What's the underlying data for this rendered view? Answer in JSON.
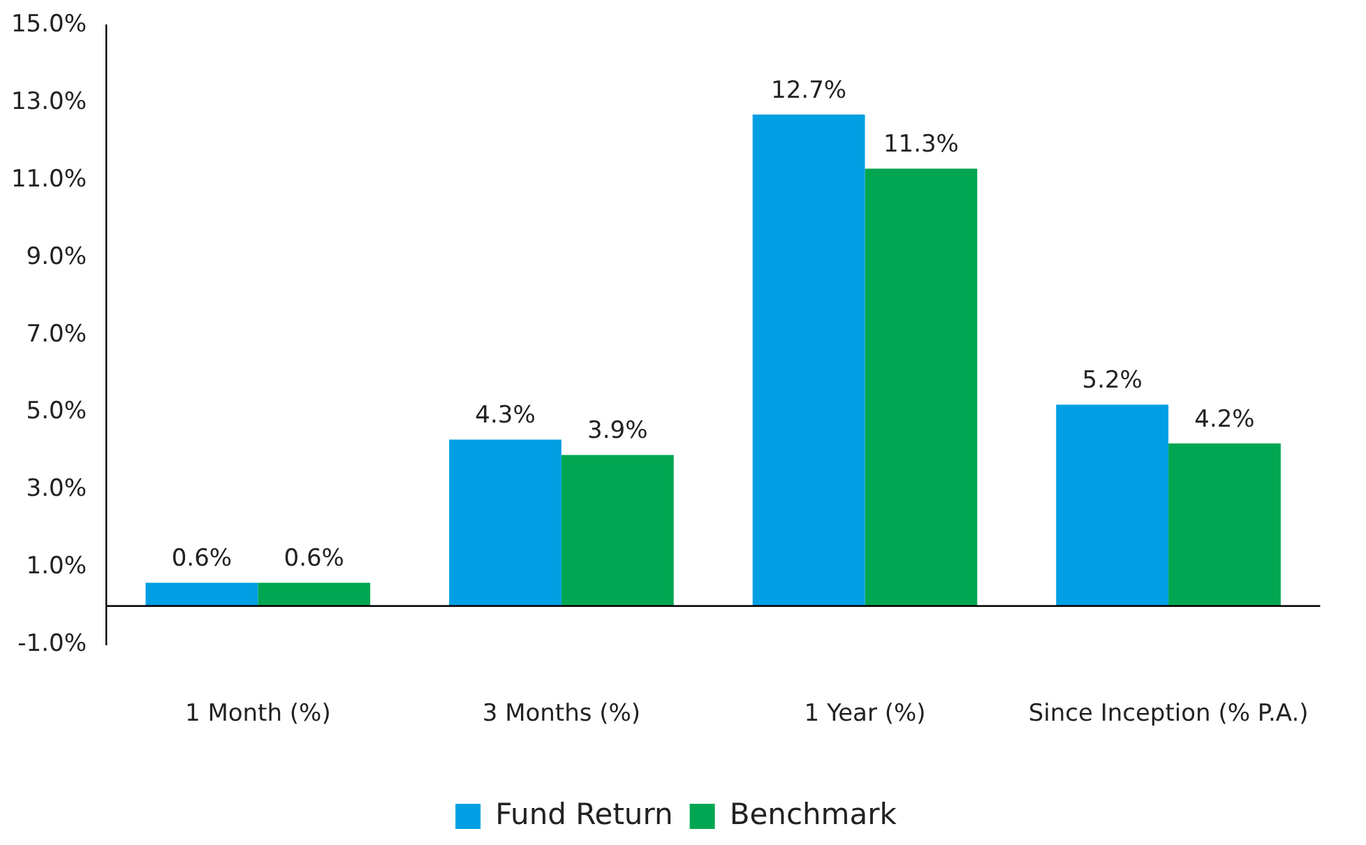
{
  "chart_data": {
    "type": "bar",
    "categories": [
      "1 Month (%)",
      "3 Months (%)",
      "1 Year (%)",
      "Since Inception (% P.A.)"
    ],
    "series": [
      {
        "name": "Fund Return",
        "color": "#009fe3",
        "values": [
          0.6,
          4.3,
          12.7,
          5.2
        ],
        "value_labels": [
          "0.6%",
          "4.3%",
          "12.7%",
          "5.2%"
        ]
      },
      {
        "name": "Benchmark",
        "color": "#00a651",
        "values": [
          0.6,
          3.9,
          11.3,
          4.2
        ],
        "value_labels": [
          "0.6%",
          "3.9%",
          "11.3%",
          "4.2%"
        ]
      }
    ],
    "ylim": [
      -1,
      15
    ],
    "yticks": [
      {
        "value": -1,
        "label": "-1.0%"
      },
      {
        "value": 1,
        "label": "1.0%"
      },
      {
        "value": 3,
        "label": "3.0%"
      },
      {
        "value": 5,
        "label": "5.0%"
      },
      {
        "value": 7,
        "label": "7.0%"
      },
      {
        "value": 9,
        "label": "9.0%"
      },
      {
        "value": 11,
        "label": "11.0%"
      },
      {
        "value": 13,
        "label": "13.0%"
      },
      {
        "value": 15,
        "label": "15.0%"
      }
    ],
    "grid": false,
    "legend": "bottom"
  }
}
